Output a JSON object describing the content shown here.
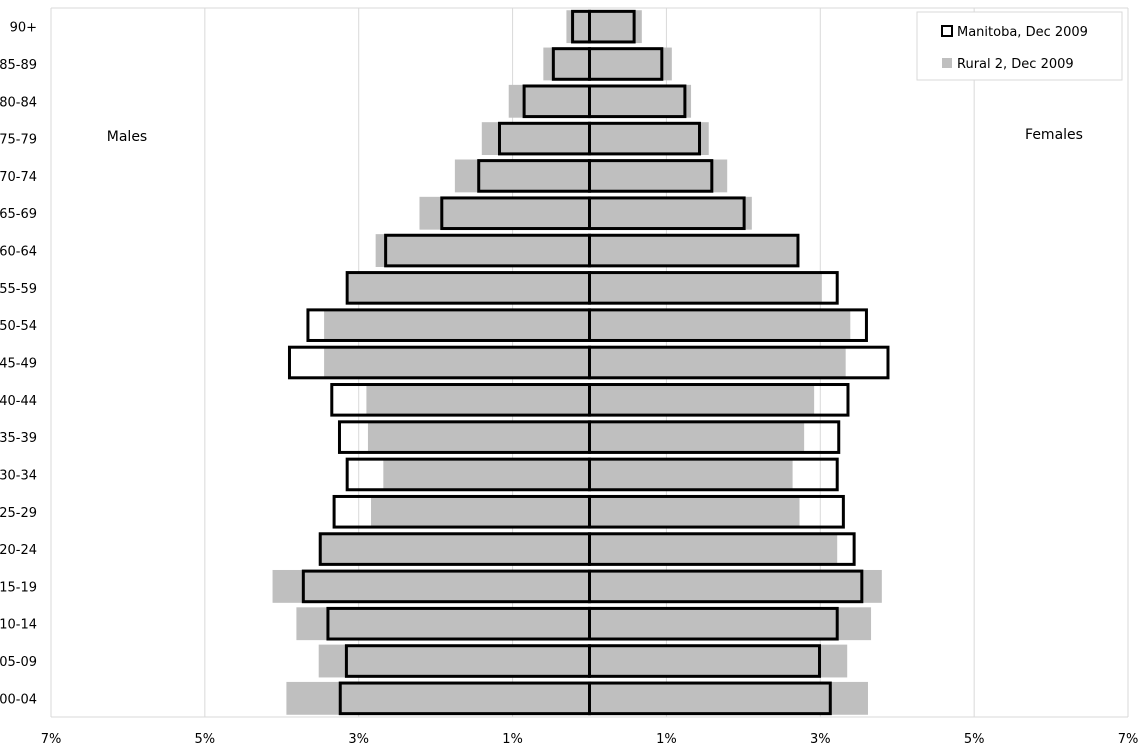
{
  "chart_data": {
    "type": "bar",
    "orientation": "horizontal",
    "subtype": "population-pyramid",
    "categories": [
      "00-04",
      "05-09",
      "10-14",
      "15-19",
      "20-24",
      "25-29",
      "30-34",
      "35-39",
      "40-44",
      "45-49",
      "50-54",
      "55-59",
      "60-64",
      "65-69",
      "70-74",
      "75-79",
      "80-84",
      "85-89",
      "90+"
    ],
    "series": [
      {
        "name": "Manitoba, Dec 2009",
        "style": "outline",
        "color": "#000000",
        "males": [
          3.24,
          3.16,
          3.4,
          3.72,
          3.5,
          3.32,
          3.15,
          3.25,
          3.35,
          3.9,
          3.66,
          3.15,
          2.65,
          1.92,
          1.44,
          1.17,
          0.85,
          0.47,
          0.22
        ],
        "females": [
          3.13,
          2.99,
          3.22,
          3.54,
          3.44,
          3.3,
          3.22,
          3.24,
          3.36,
          3.88,
          3.6,
          3.22,
          2.71,
          2.01,
          1.59,
          1.43,
          1.24,
          0.94,
          0.58
        ]
      },
      {
        "name": "Rural 2, Dec 2009",
        "style": "filled",
        "color": "#bfbfbf",
        "males": [
          3.94,
          3.52,
          3.81,
          4.12,
          3.52,
          2.84,
          2.68,
          2.88,
          2.9,
          3.45,
          3.45,
          3.13,
          2.78,
          2.21,
          1.75,
          1.4,
          1.05,
          0.6,
          0.3
        ],
        "females": [
          3.62,
          3.35,
          3.66,
          3.8,
          3.22,
          2.73,
          2.64,
          2.79,
          2.92,
          3.33,
          3.39,
          3.02,
          2.72,
          2.11,
          1.79,
          1.55,
          1.32,
          1.07,
          0.68
        ]
      }
    ],
    "x_ticks": [
      "7%",
      "5%",
      "3%",
      "1%",
      "1%",
      "3%",
      "5%",
      "7%"
    ],
    "xlim": [
      -7,
      7
    ],
    "side_labels": {
      "left": "Males",
      "right": "Females"
    },
    "legend_position": "top-right",
    "grid": "vertical"
  }
}
